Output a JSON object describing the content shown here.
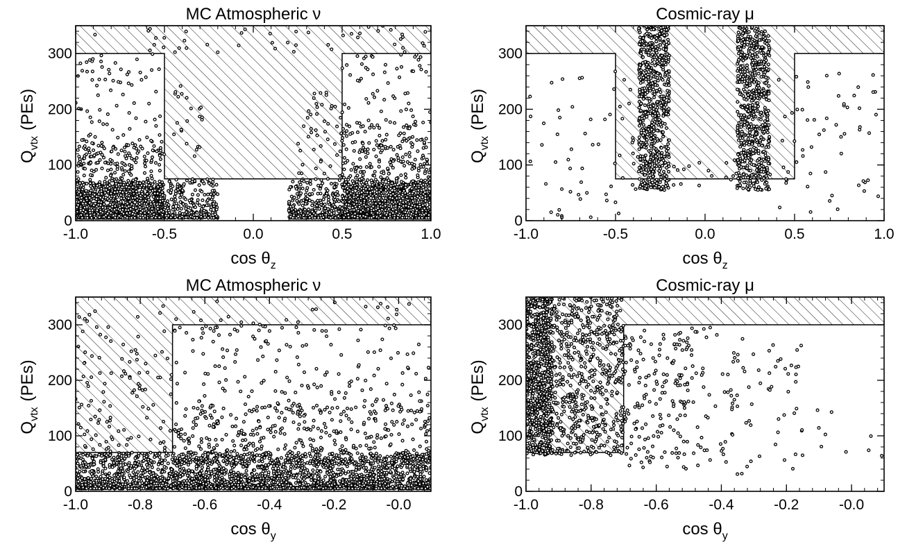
{
  "figure": {
    "background": "#ffffff",
    "ink": "#000000"
  },
  "chart_data": [
    {
      "type": "scatter",
      "title": "MC Atmospheric ν",
      "xlabel": {
        "main": "cos θ",
        "sub": "z"
      },
      "ylabel": {
        "main": "Q",
        "sub": "vtx",
        "unit": "(PEs)"
      },
      "xlim": [
        -1.0,
        1.0
      ],
      "ylim": [
        0,
        350
      ],
      "xticks": [
        -1.0,
        -0.5,
        0.0,
        0.5,
        1.0
      ],
      "xtick_labels": [
        "-1.0",
        "-0.5",
        "0.0",
        "0.5",
        "1.0"
      ],
      "yticks": [
        0,
        100,
        200,
        300
      ],
      "ytick_labels": [
        "0",
        "100",
        "200",
        "300"
      ],
      "grid": false,
      "legend": "none",
      "hatch_regions": [
        {
          "points": [
            [
              -1.0,
              300
            ],
            [
              -0.5,
              300
            ],
            [
              -0.5,
              75
            ],
            [
              0.5,
              75
            ],
            [
              0.5,
              300
            ],
            [
              1.0,
              300
            ],
            [
              1.0,
              350
            ],
            [
              -1.0,
              350
            ]
          ]
        }
      ],
      "point_groups": [
        {
          "x": [
            -1.0,
            -0.5
          ],
          "y": [
            5,
            70
          ],
          "n": 1300,
          "y_skew": 2.6
        },
        {
          "x": [
            -1.0,
            -0.5
          ],
          "y": [
            40,
            140
          ],
          "n": 220,
          "y_skew": 1.6
        },
        {
          "x": [
            -1.0,
            -0.5
          ],
          "y": [
            100,
            300
          ],
          "n": 110,
          "y_skew": 1.4
        },
        {
          "x": [
            -0.5,
            -0.2
          ],
          "y": [
            5,
            75
          ],
          "n": 260,
          "y_skew": 2.4
        },
        {
          "x": [
            -0.45,
            -0.25
          ],
          "y": [
            100,
            250
          ],
          "n": 22,
          "y_skew": 1.0
        },
        {
          "x": [
            0.2,
            0.5
          ],
          "y": [
            5,
            75
          ],
          "n": 330,
          "y_skew": 2.4
        },
        {
          "x": [
            0.25,
            0.5
          ],
          "y": [
            80,
            240
          ],
          "n": 45,
          "y_skew": 1.3
        },
        {
          "x": [
            0.5,
            1.0
          ],
          "y": [
            5,
            70
          ],
          "n": 1150,
          "y_skew": 2.6
        },
        {
          "x": [
            0.5,
            1.0
          ],
          "y": [
            40,
            180
          ],
          "n": 340,
          "y_skew": 1.7
        },
        {
          "x": [
            0.5,
            1.0
          ],
          "y": [
            150,
            300
          ],
          "n": 60,
          "y_skew": 1.0
        },
        {
          "x": [
            -1.0,
            1.0
          ],
          "y": [
            300,
            350
          ],
          "n": 45,
          "y_skew": 1.0
        }
      ]
    },
    {
      "type": "scatter",
      "title": "Cosmic-ray μ",
      "xlabel": {
        "main": "cos θ",
        "sub": "z"
      },
      "ylabel": {
        "main": "Q",
        "sub": "vtx",
        "unit": "(PEs)"
      },
      "xlim": [
        -1.0,
        1.0
      ],
      "ylim": [
        0,
        350
      ],
      "xticks": [
        -1.0,
        -0.5,
        0.0,
        0.5,
        1.0
      ],
      "xtick_labels": [
        "-1.0",
        "-0.5",
        "0.0",
        "0.5",
        "1.0"
      ],
      "yticks": [
        0,
        100,
        200,
        300
      ],
      "ytick_labels": [
        "0",
        "100",
        "200",
        "300"
      ],
      "grid": false,
      "legend": "none",
      "hatch_regions": [
        {
          "points": [
            [
              -1.0,
              300
            ],
            [
              -0.5,
              300
            ],
            [
              -0.5,
              75
            ],
            [
              0.5,
              75
            ],
            [
              0.5,
              300
            ],
            [
              1.0,
              300
            ],
            [
              1.0,
              350
            ],
            [
              -1.0,
              350
            ]
          ]
        }
      ],
      "point_groups": [
        {
          "x": [
            -0.37,
            -0.2
          ],
          "y": [
            55,
            350
          ],
          "n": 650,
          "y_skew": 1.0
        },
        {
          "x": [
            0.18,
            0.36
          ],
          "y": [
            55,
            350
          ],
          "n": 650,
          "y_skew": 1.0
        },
        {
          "x": [
            -1.0,
            -0.4
          ],
          "y": [
            5,
            270
          ],
          "n": 55,
          "y_skew": 1.0
        },
        {
          "x": [
            0.4,
            1.0
          ],
          "y": [
            5,
            270
          ],
          "n": 55,
          "y_skew": 1.0
        },
        {
          "x": [
            -0.5,
            0.5
          ],
          "y": [
            55,
            120
          ],
          "n": 45,
          "y_skew": 1.0
        }
      ]
    },
    {
      "type": "scatter",
      "title": "MC Atmospheric ν",
      "xlabel": {
        "main": "cos θ",
        "sub": "y"
      },
      "ylabel": {
        "main": "Q",
        "sub": "vtx",
        "unit": "(PEs)"
      },
      "xlim": [
        -1.0,
        0.1
      ],
      "ylim": [
        0,
        350
      ],
      "xticks": [
        -1.0,
        -0.8,
        -0.6,
        -0.4,
        -0.2,
        0.0
      ],
      "xtick_labels": [
        "-1.0",
        "-0.8",
        "-0.6",
        "-0.4",
        "-0.2",
        "-0.0"
      ],
      "yticks": [
        0,
        100,
        200,
        300
      ],
      "ytick_labels": [
        "0",
        "100",
        "200",
        "300"
      ],
      "grid": false,
      "legend": "none",
      "hatch_regions": [
        {
          "points": [
            [
              -1.0,
              70
            ],
            [
              -0.7,
              70
            ],
            [
              -0.7,
              300
            ],
            [
              0.1,
              300
            ],
            [
              0.1,
              350
            ],
            [
              -1.0,
              350
            ]
          ]
        }
      ],
      "point_groups": [
        {
          "x": [
            -1.0,
            0.1
          ],
          "y": [
            5,
            70
          ],
          "n": 2400,
          "y_skew": 2.4
        },
        {
          "x": [
            -0.7,
            0.1
          ],
          "y": [
            50,
            160
          ],
          "n": 500,
          "y_skew": 1.6
        },
        {
          "x": [
            -0.7,
            0.1
          ],
          "y": [
            140,
            300
          ],
          "n": 170,
          "y_skew": 1.0
        },
        {
          "x": [
            -1.0,
            -0.7
          ],
          "y": [
            50,
            300
          ],
          "n": 130,
          "y_skew": 1.5
        },
        {
          "x": [
            -1.0,
            0.1
          ],
          "y": [
            300,
            350
          ],
          "n": 30,
          "y_skew": 1.0
        }
      ]
    },
    {
      "type": "scatter",
      "title": "Cosmic-ray μ",
      "xlabel": {
        "main": "cos θ",
        "sub": "y"
      },
      "ylabel": {
        "main": "Q",
        "sub": "vtx",
        "unit": "(PEs)"
      },
      "xlim": [
        -1.0,
        0.1
      ],
      "ylim": [
        0,
        350
      ],
      "xticks": [
        -1.0,
        -0.8,
        -0.6,
        -0.4,
        -0.2,
        0.0
      ],
      "xtick_labels": [
        "-1.0",
        "-0.8",
        "-0.6",
        "-0.4",
        "-0.2",
        "-0.0"
      ],
      "yticks": [
        0,
        100,
        200,
        300
      ],
      "ytick_labels": [
        "0",
        "100",
        "200",
        "300"
      ],
      "grid": false,
      "legend": "none",
      "hatch_regions": [
        {
          "points": [
            [
              -1.0,
              70
            ],
            [
              -0.7,
              70
            ],
            [
              -0.7,
              300
            ],
            [
              0.1,
              300
            ],
            [
              0.1,
              350
            ],
            [
              -1.0,
              350
            ]
          ]
        }
      ],
      "point_groups": [
        {
          "x": [
            -1.0,
            -0.92
          ],
          "y": [
            65,
            350
          ],
          "n": 700,
          "y_skew": 1.0
        },
        {
          "x": [
            -0.95,
            -0.7
          ],
          "y": [
            65,
            350
          ],
          "n": 650,
          "y_skew": 1.0
        },
        {
          "x": [
            -0.7,
            -0.5
          ],
          "y": [
            40,
            300
          ],
          "n": 160,
          "y_skew": 1.0
        },
        {
          "x": [
            -0.55,
            -0.15
          ],
          "y": [
            20,
            300
          ],
          "n": 110,
          "y_skew": 1.0
        },
        {
          "x": [
            -0.2,
            0.1
          ],
          "y": [
            5,
            200
          ],
          "n": 12,
          "y_skew": 1.0
        }
      ]
    }
  ]
}
